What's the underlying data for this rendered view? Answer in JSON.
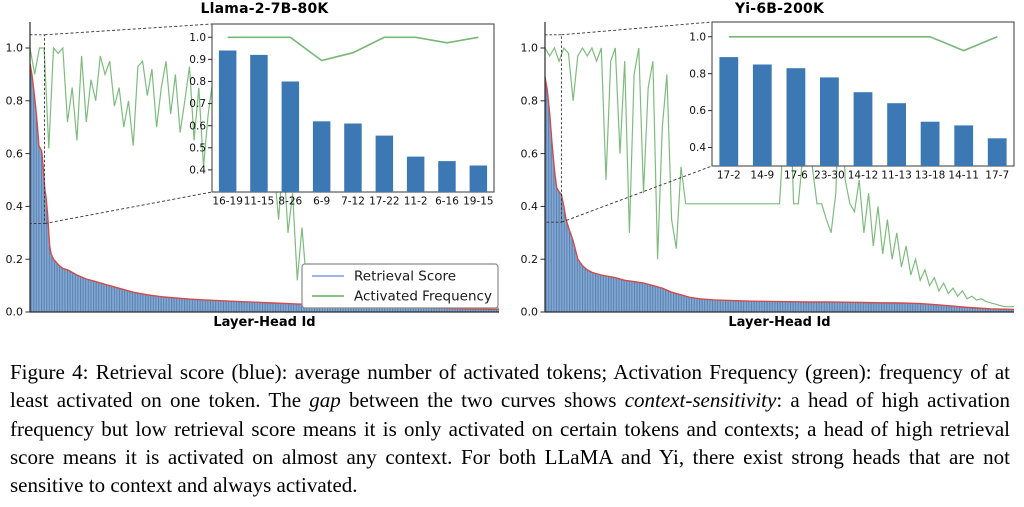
{
  "figure": {
    "caption_segments": [
      {
        "style": "normal",
        "text": "Figure 4: Retrieval score (blue): average number of activated tokens; Activation Frequency (green): frequency of at least activated on one token. The "
      },
      {
        "style": "italic",
        "text": "gap"
      },
      {
        "style": "normal",
        "text": " between the two curves shows "
      },
      {
        "style": "italic",
        "text": "context-sensitivity"
      },
      {
        "style": "normal",
        "text": ": a head of high activation frequency but low retrieval score means it is only activated on certain tokens and contexts; a head of high retrieval score means it is activated on almost any context. For both LLaMA and Yi, there exist strong heads that are not sensitive to context and always activated."
      }
    ]
  },
  "colors": {
    "blue_fill": "#85a9d2",
    "blue_stripe": "#5580b2",
    "red_edge": "#d14b4b",
    "green_line": "#77b877",
    "inset_bar": "#3c79b4",
    "legend_blue": "#98a5ec",
    "axis": "#2a2a2a",
    "dashed": "#333333"
  },
  "chart_data": [
    {
      "type": "line",
      "title": "Llama-2-7B-80K",
      "xlabel": "Layer-Head Id",
      "ylim": [
        0.0,
        1.1
      ],
      "yticks": [
        0.0,
        0.2,
        0.4,
        0.6,
        0.8,
        1.0
      ],
      "grid": false,
      "legend": {
        "position": "lower right",
        "entries": [
          "Retrieval Score",
          "Activated Frequency"
        ]
      },
      "series": [
        {
          "name": "Retrieval Score",
          "x": [
            0,
            0.004,
            0.008,
            0.012,
            0.016,
            0.019,
            0.022,
            0.025,
            0.028,
            0.03,
            0.032,
            0.034,
            0.036,
            0.038,
            0.04,
            0.042,
            0.045,
            0.05,
            0.06,
            0.07,
            0.08,
            0.1,
            0.12,
            0.14,
            0.16,
            0.18,
            0.2,
            0.22,
            0.25,
            0.28,
            0.31,
            0.34,
            0.37,
            0.4,
            0.44,
            0.48,
            0.52,
            0.56,
            0.6,
            0.64,
            0.68,
            0.72,
            0.76,
            0.8,
            0.84,
            0.88,
            0.92,
            0.96,
            1.0
          ],
          "values": [
            0.94,
            0.9,
            0.84,
            0.78,
            0.7,
            0.63,
            0.62,
            0.61,
            0.555,
            0.5,
            0.46,
            0.44,
            0.4,
            0.36,
            0.3,
            0.25,
            0.22,
            0.2,
            0.18,
            0.165,
            0.16,
            0.14,
            0.125,
            0.115,
            0.105,
            0.095,
            0.085,
            0.075,
            0.065,
            0.058,
            0.053,
            0.049,
            0.046,
            0.043,
            0.04,
            0.037,
            0.034,
            0.031,
            0.028,
            0.026,
            0.024,
            0.022,
            0.02,
            0.018,
            0.016,
            0.014,
            0.012,
            0.011,
            0.01
          ]
        },
        {
          "name": "Activated Frequency",
          "values": [
            1.0,
            0.9,
            1.0,
            1.0,
            0.62,
            1.0,
            0.98,
            1.0,
            0.72,
            0.85,
            0.65,
            0.97,
            0.72,
            0.88,
            0.8,
            0.97,
            0.9,
            0.95,
            0.78,
            0.85,
            0.7,
            0.8,
            0.63,
            0.93,
            0.95,
            0.82,
            0.92,
            0.7,
            0.85,
            0.95,
            0.75,
            0.9,
            0.68,
            0.8,
            0.93,
            0.65,
            0.85,
            0.55,
            0.75,
            0.88,
            0.6,
            0.78,
            0.92,
            0.62,
            0.75,
            0.55,
            0.85,
            0.48,
            0.7,
            0.78,
            0.52,
            0.68,
            0.55,
            0.35,
            0.6,
            0.3,
            0.45,
            0.12,
            0.32,
            0.1,
            0.15,
            0.08,
            0.13,
            0.1,
            0.12,
            0.08,
            0.11,
            0.07,
            0.1,
            0.06,
            0.08,
            0.055,
            0.07,
            0.05,
            0.06,
            0.045,
            0.055,
            0.04,
            0.05,
            0.038,
            0.045,
            0.035,
            0.042,
            0.032,
            0.04,
            0.03,
            0.038,
            0.028,
            0.035,
            0.026,
            0.032,
            0.024,
            0.03,
            0.022,
            0.028,
            0.02,
            0.026,
            0.018,
            0.022,
            0.016,
            0.015
          ]
        }
      ],
      "zoom_box": {
        "x0": 0.0,
        "x1": 0.031,
        "y0": 0.335,
        "y1": 1.05
      },
      "inset": {
        "type": "bar",
        "categories": [
          "16-19",
          "11-15",
          "8-26",
          "6-9",
          "7-12",
          "17-22",
          "11-2",
          "6-16",
          "19-15"
        ],
        "values": [
          0.94,
          0.92,
          0.8,
          0.62,
          0.61,
          0.555,
          0.46,
          0.44,
          0.42
        ],
        "line_name": "Activated Frequency",
        "line_values": [
          1.0,
          1.0,
          1.0,
          0.895,
          0.93,
          1.0,
          1.0,
          0.975,
          1.0
        ],
        "ylim": [
          0.3,
          1.06
        ],
        "yticks": [
          0.4,
          0.5,
          0.6,
          0.7,
          0.8,
          0.9,
          1.0
        ]
      }
    },
    {
      "type": "line",
      "title": "Yi-6B-200K",
      "xlabel": "Layer-Head Id",
      "ylim": [
        0.0,
        1.1
      ],
      "yticks": [
        0.0,
        0.2,
        0.4,
        0.6,
        0.8,
        1.0
      ],
      "grid": false,
      "legend": null,
      "series": [
        {
          "name": "Retrieval Score",
          "x": [
            0,
            0.005,
            0.01,
            0.015,
            0.02,
            0.025,
            0.03,
            0.035,
            0.04,
            0.045,
            0.05,
            0.055,
            0.06,
            0.065,
            0.07,
            0.08,
            0.09,
            0.1,
            0.12,
            0.15,
            0.17,
            0.19,
            0.21,
            0.23,
            0.25,
            0.27,
            0.29,
            0.31,
            0.33,
            0.36,
            0.4,
            0.44,
            0.48,
            0.52,
            0.56,
            0.6,
            0.64,
            0.68,
            0.72,
            0.76,
            0.8,
            0.83,
            0.86,
            0.89,
            0.92,
            0.95,
            1.0
          ],
          "values": [
            0.89,
            0.84,
            0.75,
            0.64,
            0.54,
            0.47,
            0.455,
            0.445,
            0.4,
            0.35,
            0.32,
            0.295,
            0.27,
            0.235,
            0.2,
            0.175,
            0.16,
            0.15,
            0.14,
            0.13,
            0.12,
            0.115,
            0.11,
            0.1,
            0.09,
            0.075,
            0.065,
            0.055,
            0.05,
            0.046,
            0.043,
            0.041,
            0.04,
            0.039,
            0.038,
            0.038,
            0.037,
            0.036,
            0.035,
            0.034,
            0.032,
            0.028,
            0.024,
            0.019,
            0.015,
            0.012,
            0.01
          ]
        },
        {
          "name": "Activated Frequency",
          "values": [
            1.0,
            0.97,
            1.0,
            0.95,
            1.0,
            0.98,
            0.8,
            0.97,
            1.0,
            0.97,
            1.0,
            0.95,
            1.0,
            0.5,
            0.95,
            1.0,
            0.6,
            0.95,
            0.3,
            0.9,
            1.0,
            0.45,
            0.85,
            0.95,
            0.2,
            0.7,
            0.9,
            0.35,
            0.24,
            0.55,
            0.41,
            0.41,
            0.41,
            0.41,
            0.41,
            0.41,
            0.41,
            0.41,
            0.41,
            0.41,
            0.41,
            0.41,
            0.41,
            0.41,
            0.41,
            0.41,
            0.41,
            0.41,
            0.41,
            0.41,
            0.41,
            0.7,
            0.95,
            0.41,
            0.41,
            0.6,
            1.0,
            0.55,
            0.41,
            0.41,
            0.35,
            0.3,
            0.45,
            0.95,
            0.5,
            0.41,
            0.38,
            0.5,
            0.3,
            0.45,
            0.25,
            0.4,
            0.22,
            0.35,
            0.2,
            0.3,
            0.17,
            0.25,
            0.14,
            0.2,
            0.12,
            0.16,
            0.1,
            0.13,
            0.08,
            0.11,
            0.07,
            0.09,
            0.06,
            0.08,
            0.05,
            0.06,
            0.045,
            0.05,
            0.04,
            0.035,
            0.03,
            0.025,
            0.02,
            0.02,
            0.02
          ]
        }
      ],
      "zoom_box": {
        "x0": 0.0,
        "x1": 0.035,
        "y0": 0.34,
        "y1": 1.05
      },
      "inset": {
        "type": "bar",
        "categories": [
          "17-2",
          "14-9",
          "17-6",
          "23-30",
          "14-12",
          "11-13",
          "13-18",
          "14-11",
          "17-7"
        ],
        "values": [
          0.89,
          0.85,
          0.83,
          0.78,
          0.7,
          0.64,
          0.54,
          0.52,
          0.45
        ],
        "line_name": "Activated Frequency",
        "line_values": [
          1.0,
          1.0,
          1.0,
          1.0,
          1.0,
          1.0,
          1.0,
          0.925,
          1.0
        ],
        "ylim": [
          0.3,
          1.08
        ],
        "yticks": [
          0.4,
          0.6,
          0.8,
          1.0
        ]
      }
    }
  ]
}
